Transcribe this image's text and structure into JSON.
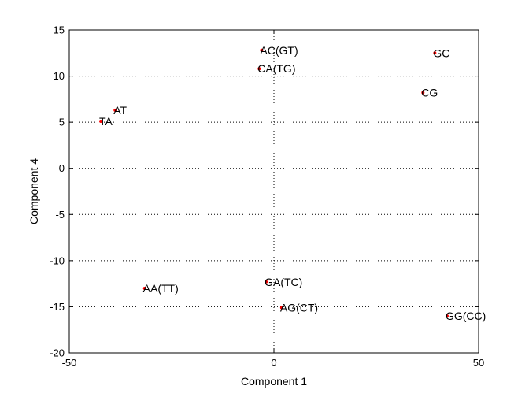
{
  "chart_data": {
    "type": "scatter",
    "title": "",
    "xlabel": "Component 1",
    "ylabel": "Component 4",
    "xlim": [
      -50,
      50
    ],
    "ylim": [
      -20,
      15
    ],
    "xticks": [
      -50,
      0,
      50
    ],
    "yticks": [
      -20,
      -15,
      -10,
      -5,
      0,
      5,
      10,
      15
    ],
    "x_tick_labels": [
      "-50",
      "0",
      "50"
    ],
    "y_tick_labels": [
      "-20",
      "-15",
      "-10",
      "-5",
      "0",
      "5",
      "10",
      "15"
    ],
    "grid": true,
    "marker_color": "#ff0000",
    "points": [
      {
        "label": "AC(GT)",
        "x": -3,
        "y": 12.8
      },
      {
        "label": "CA(TG)",
        "x": -3.6,
        "y": 10.8
      },
      {
        "label": "GC",
        "x": 39.3,
        "y": 12.5
      },
      {
        "label": "CG",
        "x": 36.4,
        "y": 8.2
      },
      {
        "label": "AT",
        "x": -38.8,
        "y": 6.3
      },
      {
        "label": "TA",
        "x": -42.3,
        "y": 5.1
      },
      {
        "label": "AA(TT)",
        "x": -31.6,
        "y": -13.0
      },
      {
        "label": "GA(TC)",
        "x": -1.9,
        "y": -12.3
      },
      {
        "label": "AG(CT)",
        "x": 1.9,
        "y": -15.1
      },
      {
        "label": "GG(CC)",
        "x": 42.3,
        "y": -16.0
      }
    ]
  }
}
